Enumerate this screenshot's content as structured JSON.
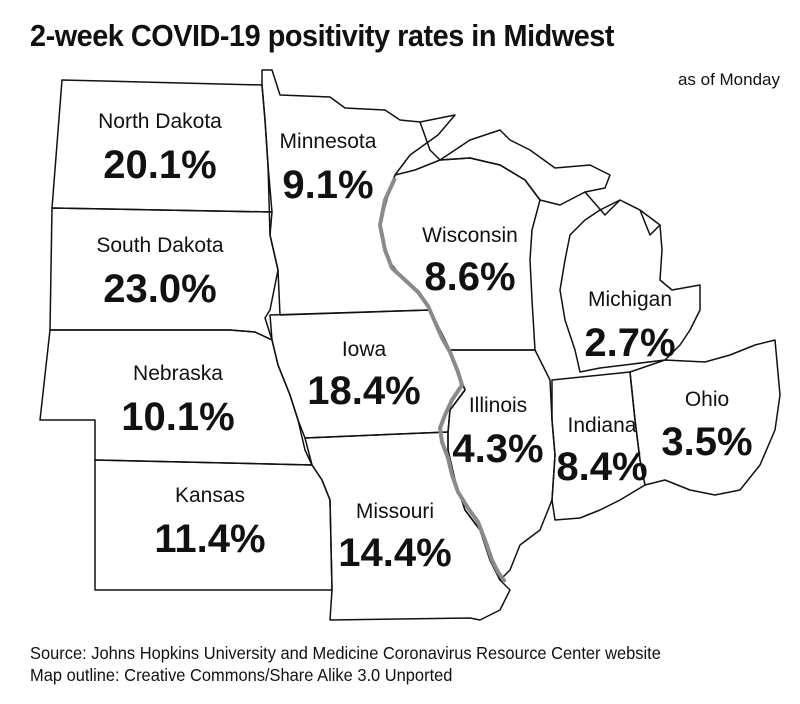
{
  "title": "2-week COVID-19 positivity rates in Midwest",
  "subtitle": "as of Monday",
  "states": [
    {
      "name": "North Dakota",
      "rate": "20.1%"
    },
    {
      "name": "Minnesota",
      "rate": "9.1%"
    },
    {
      "name": "South Dakota",
      "rate": "23.0%"
    },
    {
      "name": "Wisconsin",
      "rate": "8.6%"
    },
    {
      "name": "Michigan",
      "rate": "2.7%"
    },
    {
      "name": "Nebraska",
      "rate": "10.1%"
    },
    {
      "name": "Iowa",
      "rate": "18.4%"
    },
    {
      "name": "Illinois",
      "rate": "4.3%"
    },
    {
      "name": "Indiana",
      "rate": "8.4%"
    },
    {
      "name": "Ohio",
      "rate": "3.5%"
    },
    {
      "name": "Kansas",
      "rate": "11.4%"
    },
    {
      "name": "Missouri",
      "rate": "14.4%"
    }
  ],
  "source": {
    "line1": "Source: Johns Hopkins University and Medicine Coronavirus Resource Center website",
    "line2": "Map outline: Creative Commons/Share Alike 3.0 Unported"
  },
  "colors": {
    "outline": "#111111",
    "river": "#8a8a8a",
    "background": "#ffffff"
  }
}
